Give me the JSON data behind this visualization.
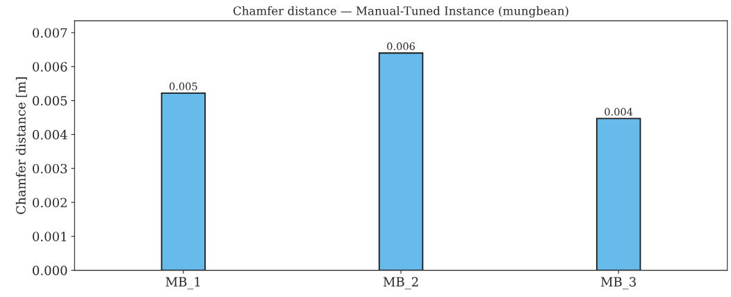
{
  "chart_data": {
    "type": "bar",
    "title": "Chamfer distance — Manual-Tuned Instance (mungbean)",
    "ylabel": "Chamfer distance [m]",
    "categories": [
      "MB_1",
      "MB_2",
      "MB_3"
    ],
    "values": [
      0.00522,
      0.0064,
      0.00447
    ],
    "value_labels": [
      "0.005",
      "0.006",
      "0.004"
    ],
    "color": "#67bbea",
    "ylim": [
      0,
      0.00735
    ],
    "yticks": [
      {
        "value": 0,
        "label": "0.000"
      },
      {
        "value": 0.001,
        "label": "0.001"
      },
      {
        "value": 0.002,
        "label": "0.002"
      },
      {
        "value": 0.003,
        "label": "0.003"
      },
      {
        "value": 0.004,
        "label": "0.004"
      },
      {
        "value": 0.005,
        "label": "0.005"
      },
      {
        "value": 0.006,
        "label": "0.006"
      },
      {
        "value": 0.007,
        "label": "0.007"
      }
    ],
    "grid": false,
    "legend": false
  }
}
